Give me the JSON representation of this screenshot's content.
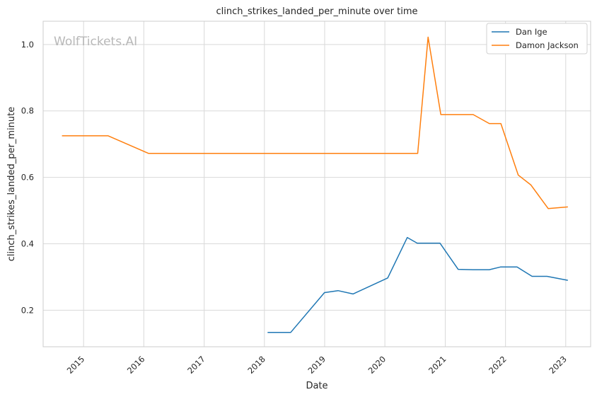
{
  "watermark": "WolfTickets.AI",
  "chart_data": {
    "type": "line",
    "title": "clinch_strikes_landed_per_minute over time",
    "xlabel": "Date",
    "ylabel": "clinch_strikes_landed_per_minute",
    "xlim": [
      "2014-05-01",
      "2023-06-01"
    ],
    "ylim": [
      0.09,
      1.07
    ],
    "x_ticks": [
      "2015",
      "2016",
      "2017",
      "2018",
      "2019",
      "2020",
      "2021",
      "2022",
      "2023"
    ],
    "y_ticks": [
      "0.2",
      "0.4",
      "0.6",
      "0.8",
      "1.0"
    ],
    "grid": true,
    "legend_position": "top-right",
    "series": [
      {
        "name": "Dan Ige",
        "color": "#1f77b4",
        "points": [
          [
            "2018-01-20",
            0.133
          ],
          [
            "2018-06-09",
            0.133
          ],
          [
            "2018-12-31",
            0.253
          ],
          [
            "2019-03-23",
            0.259
          ],
          [
            "2019-06-22",
            0.249
          ],
          [
            "2020-01-18",
            0.297
          ],
          [
            "2020-05-16",
            0.419
          ],
          [
            "2020-07-15",
            0.402
          ],
          [
            "2020-11-30",
            0.402
          ],
          [
            "2021-03-20",
            0.323
          ],
          [
            "2021-06-19",
            0.322
          ],
          [
            "2021-09-25",
            0.322
          ],
          [
            "2021-12-01",
            0.33
          ],
          [
            "2022-03-12",
            0.33
          ],
          [
            "2022-06-11",
            0.302
          ],
          [
            "2022-09-10",
            0.302
          ],
          [
            "2023-01-14",
            0.29
          ]
        ]
      },
      {
        "name": "Damon Jackson",
        "color": "#ff7f0e",
        "points": [
          [
            "2014-08-23",
            0.725
          ],
          [
            "2015-05-30",
            0.725
          ],
          [
            "2016-01-30",
            0.672
          ],
          [
            "2020-07-18",
            0.672
          ],
          [
            "2020-09-19",
            1.022
          ],
          [
            "2020-12-05",
            0.789
          ],
          [
            "2021-06-19",
            0.789
          ],
          [
            "2021-09-25",
            0.762
          ],
          [
            "2021-12-04",
            0.762
          ],
          [
            "2022-03-19",
            0.607
          ],
          [
            "2022-06-04",
            0.577
          ],
          [
            "2022-09-17",
            0.506
          ],
          [
            "2023-01-14",
            0.511
          ]
        ]
      }
    ]
  }
}
